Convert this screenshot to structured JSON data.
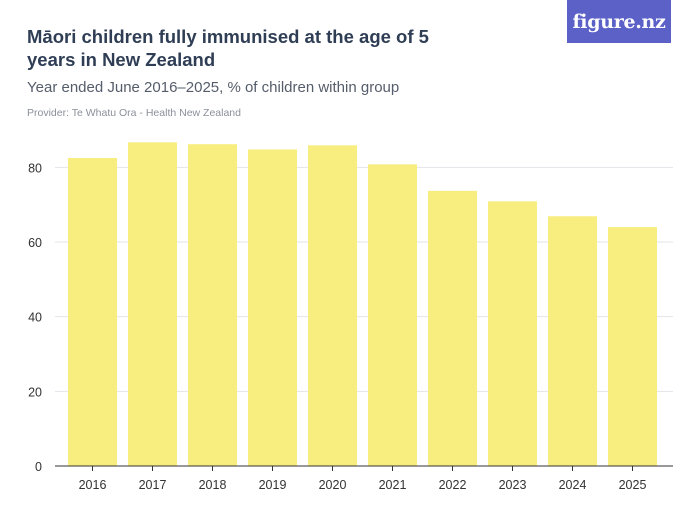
{
  "header": {
    "title": "Māori children fully immunised at the age of 5 years in New Zealand",
    "subtitle": "Year ended June 2016–2025, % of children within group",
    "provider": "Provider: Te Whatu Ora - Health New Zealand",
    "logo": "figure.nz"
  },
  "colors": {
    "bar": "#f7ee7f",
    "grid": "#e2e4e8",
    "axis": "#333333",
    "tick_text": "#333333",
    "logo_bg": "#5b61c7"
  },
  "chart_data": {
    "type": "bar",
    "categories": [
      "2016",
      "2017",
      "2018",
      "2019",
      "2020",
      "2021",
      "2022",
      "2023",
      "2024",
      "2025"
    ],
    "values": [
      82.5,
      86.7,
      86.2,
      84.8,
      85.9,
      80.8,
      73.7,
      70.9,
      66.9,
      64.0
    ],
    "ylim": [
      0,
      90
    ],
    "yticks": [
      0,
      20,
      40,
      60,
      80
    ],
    "grid": true,
    "legend": "none",
    "xlabel": "",
    "ylabel": ""
  }
}
